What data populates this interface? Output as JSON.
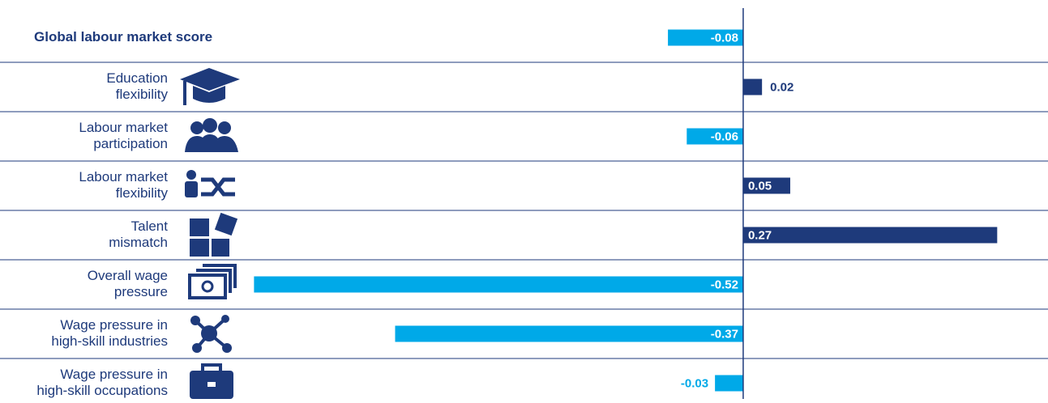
{
  "chart_data": {
    "type": "bar",
    "orientation": "horizontal",
    "categories": [
      [
        "Global labour market score"
      ],
      [
        "Education",
        "flexibility"
      ],
      [
        "Labour market",
        "participation"
      ],
      [
        "Labour market",
        "flexibility"
      ],
      [
        "Talent",
        "mismatch"
      ],
      [
        "Overall wage",
        "pressure"
      ],
      [
        "Wage pressure in",
        "high-skill industries"
      ],
      [
        "Wage pressure in",
        "high-skill occupations"
      ]
    ],
    "values": [
      -0.08,
      0.02,
      -0.06,
      0.05,
      0.27,
      -0.52,
      -0.37,
      -0.03
    ],
    "negative_color": "#00a9e8",
    "positive_color": "#1e3a7b",
    "xlim": [
      -0.79,
      0.324
    ]
  }
}
